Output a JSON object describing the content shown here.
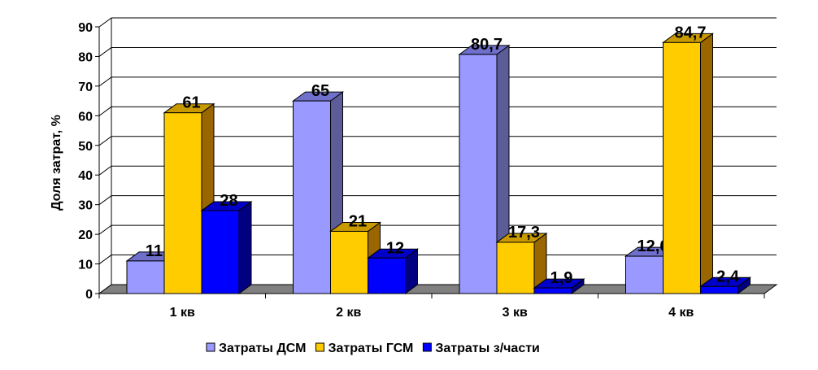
{
  "chart_data": {
    "type": "bar",
    "style": "3d-clustered-column",
    "title": "",
    "xlabel": "",
    "ylabel": "Доля затрат, %",
    "ylim": [
      0,
      90
    ],
    "yticks": [
      "0",
      "10",
      "20",
      "30",
      "40",
      "50",
      "60",
      "70",
      "80",
      "90"
    ],
    "grid": true,
    "legend_position": "bottom",
    "categories": [
      "1 кв",
      "2 кв",
      "3 кв",
      "4 кв"
    ],
    "series": [
      {
        "name": "Затраты ДСМ",
        "values": [
          11,
          65,
          80.7,
          12.6
        ],
        "labels": [
          "11",
          "65",
          "80,7",
          "12,6"
        ],
        "color": "#9999FF"
      },
      {
        "name": "Затраты ГСМ",
        "values": [
          61,
          21,
          17.3,
          84.7
        ],
        "labels": [
          "61",
          "21",
          "17,3",
          "84,7"
        ],
        "color": "#FFCC00"
      },
      {
        "name": "Затраты з/части",
        "values": [
          28,
          12,
          1.9,
          2.4
        ],
        "labels": [
          "28",
          "12",
          "1,9",
          "2,4"
        ],
        "color": "#0000FF"
      }
    ]
  }
}
